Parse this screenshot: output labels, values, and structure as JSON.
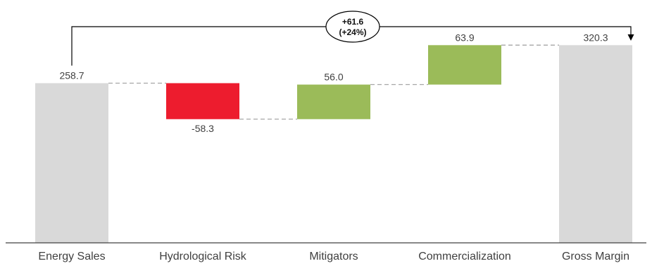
{
  "chart_data": {
    "type": "bar",
    "subtype": "waterfall",
    "categories": [
      "Energy Sales",
      "Hydrological Risk",
      "Mitigators",
      "Commercialization",
      "Gross Margin"
    ],
    "values": [
      258.7,
      -58.3,
      56.0,
      63.9,
      320.3
    ],
    "value_labels": [
      "258.7",
      "-58.3",
      "56.0",
      "63.9",
      "320.3"
    ],
    "bar_kinds": [
      "total",
      "decrease",
      "increase",
      "increase",
      "total"
    ],
    "ylim": [
      0,
      340
    ],
    "title": "",
    "xlabel": "",
    "ylabel": "",
    "grid": false,
    "legend": "none",
    "colors": {
      "total": "#d9d9d9",
      "increase": "#9bbb59",
      "decrease": "#ed1c2e",
      "connector": "#a6a6a6",
      "axis": "#404040",
      "bracket": "#000000"
    },
    "annotation": {
      "line1": "+61.6",
      "line2": "(+24%)",
      "from": "Energy Sales",
      "to": "Gross Margin"
    }
  }
}
